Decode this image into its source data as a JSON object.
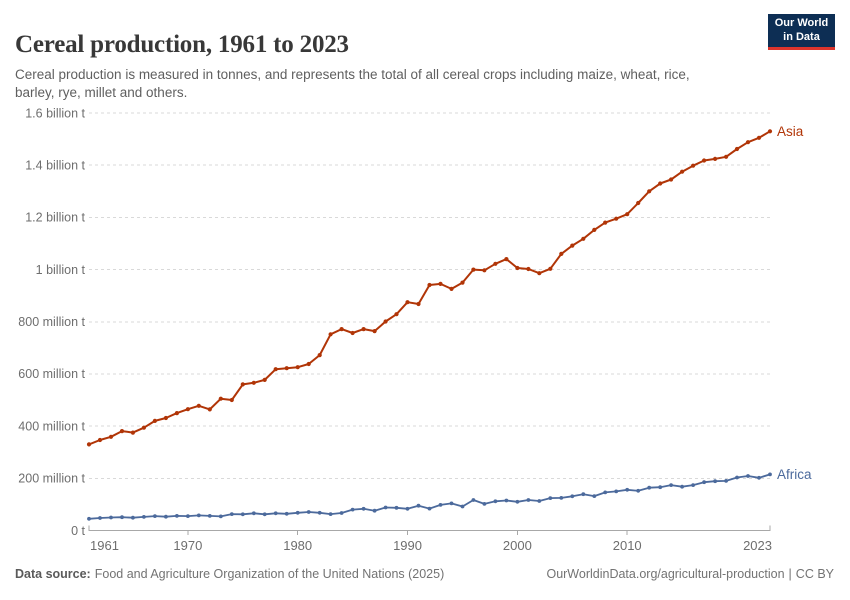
{
  "header": {
    "title": "Cereal production, 1961 to 2023",
    "subtitle": "Cereal production is measured in tonnes, and represents the total of all cereal crops including maize, wheat, rice, barley, rye, millet and others.",
    "logo": {
      "line1": "Our World",
      "line2": "in Data",
      "bg": "#0d2e54",
      "accent": "#dc342c"
    }
  },
  "chart_data": {
    "type": "line",
    "title": "Cereal production, 1961 to 2023",
    "unit": "million tonnes",
    "ylim": [
      0,
      1600
    ],
    "grid": "horizontal-dashed",
    "legend_position": "end-of-line-labels",
    "x": [
      1961,
      1962,
      1963,
      1964,
      1965,
      1966,
      1967,
      1968,
      1969,
      1970,
      1971,
      1972,
      1973,
      1974,
      1975,
      1976,
      1977,
      1978,
      1979,
      1980,
      1981,
      1982,
      1983,
      1984,
      1985,
      1986,
      1987,
      1988,
      1989,
      1990,
      1991,
      1992,
      1993,
      1994,
      1995,
      1996,
      1997,
      1998,
      1999,
      2000,
      2001,
      2002,
      2003,
      2004,
      2005,
      2006,
      2007,
      2008,
      2009,
      2010,
      2011,
      2012,
      2013,
      2014,
      2015,
      2016,
      2017,
      2018,
      2019,
      2020,
      2021,
      2022,
      2023
    ],
    "series": [
      {
        "name": "Asia",
        "color": "#b13507",
        "values": [
          330,
          347,
          359,
          381,
          375,
          394,
          420,
          431,
          450,
          465,
          478,
          464,
          505,
          500,
          560,
          566,
          577,
          618,
          622,
          626,
          638,
          672,
          752,
          772,
          757,
          772,
          764,
          801,
          829,
          875,
          868,
          941,
          945,
          926,
          950,
          1000,
          997,
          1022,
          1040,
          1006,
          1002,
          986,
          1003,
          1060,
          1092,
          1118,
          1152,
          1180,
          1195,
          1212,
          1255,
          1300,
          1330,
          1345,
          1375,
          1398,
          1418,
          1424,
          1432,
          1462,
          1488,
          1505,
          1530
        ]
      },
      {
        "name": "Africa",
        "color": "#4c6a9c",
        "values": [
          45,
          48,
          50,
          51,
          49,
          52,
          55,
          53,
          56,
          55,
          58,
          56,
          54,
          63,
          62,
          66,
          62,
          66,
          64,
          68,
          71,
          68,
          63,
          67,
          80,
          83,
          76,
          88,
          87,
          83,
          95,
          84,
          98,
          104,
          92,
          117,
          102,
          112,
          115,
          110,
          117,
          113,
          124,
          125,
          131,
          139,
          132,
          146,
          150,
          156,
          152,
          164,
          166,
          174,
          168,
          174,
          185,
          189,
          190,
          203,
          209,
          202,
          215
        ]
      }
    ],
    "yticks": [
      {
        "value": 0,
        "label": "0 t"
      },
      {
        "value": 200,
        "label": "200 million t"
      },
      {
        "value": 400,
        "label": "400 million t"
      },
      {
        "value": 600,
        "label": "600 million t"
      },
      {
        "value": 800,
        "label": "800 million t"
      },
      {
        "value": 1000,
        "label": "1 billion t"
      },
      {
        "value": 1200,
        "label": "1.2 billion t"
      },
      {
        "value": 1400,
        "label": "1.4 billion t"
      },
      {
        "value": 1600,
        "label": "1.6 billion t"
      }
    ],
    "xticks": [
      1961,
      1970,
      1980,
      1990,
      2000,
      2010,
      2023
    ]
  },
  "footer": {
    "source_label": "Data source:",
    "source_text": "Food and Agriculture Organization of the United Nations (2025)",
    "url": "OurWorldinData.org/agricultural-production",
    "separator": "|",
    "license": "CC BY"
  }
}
